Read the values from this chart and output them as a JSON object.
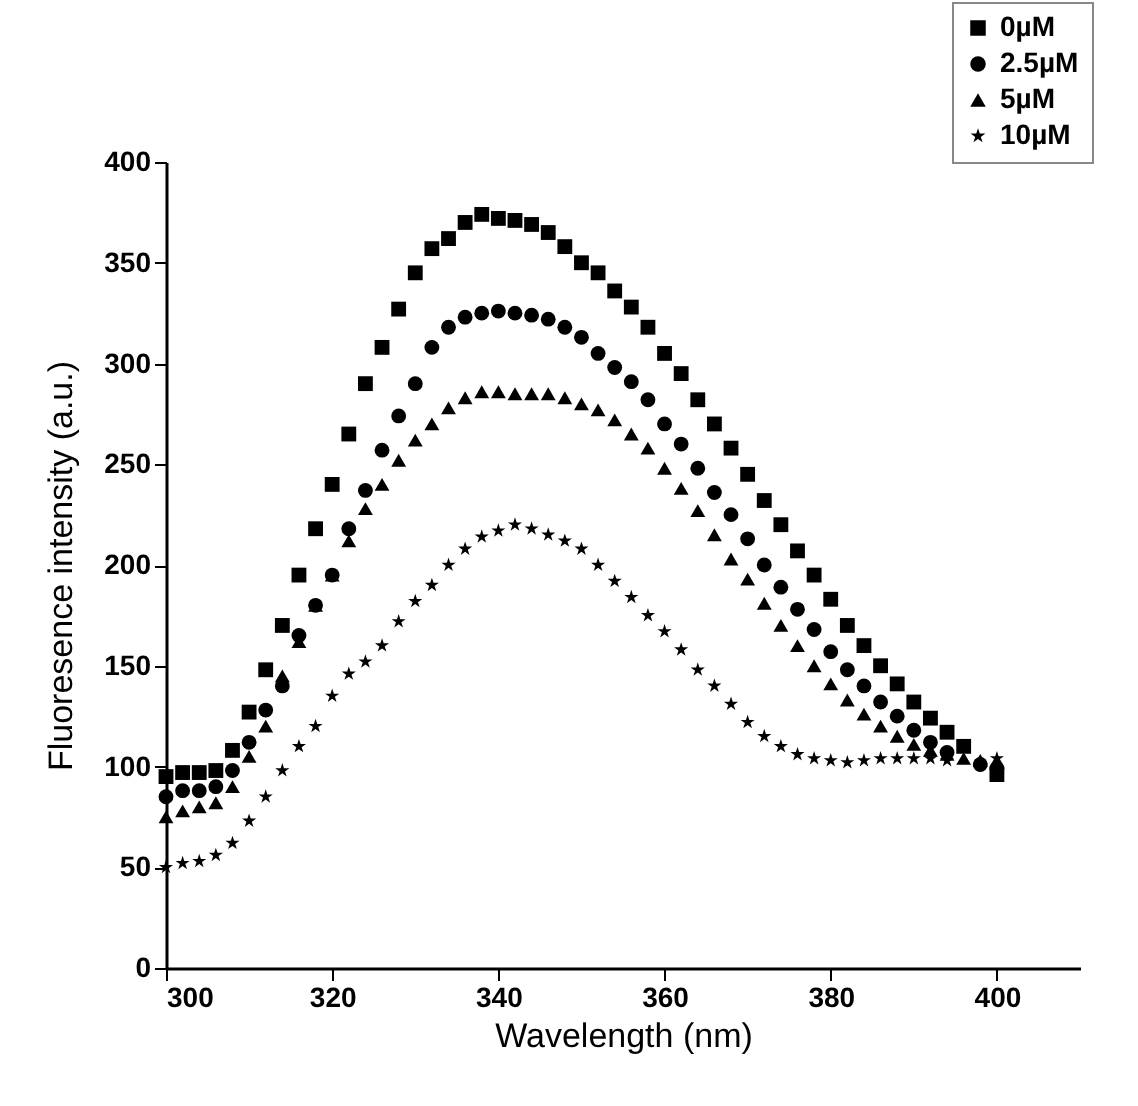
{
  "chart_data": {
    "type": "scatter",
    "xlabel": "Wavelength (nm)",
    "ylabel": "Fluoresence intensity (a.u.)",
    "x": [
      300,
      302,
      304,
      306,
      308,
      310,
      312,
      314,
      316,
      318,
      320,
      322,
      324,
      326,
      328,
      330,
      332,
      334,
      336,
      338,
      340,
      342,
      344,
      346,
      348,
      350,
      352,
      354,
      356,
      358,
      360,
      362,
      364,
      366,
      368,
      370,
      372,
      374,
      376,
      378,
      380,
      382,
      384,
      386,
      388,
      390,
      392,
      394,
      396,
      398,
      400
    ],
    "xlim": [
      300,
      410
    ],
    "xticks": [
      300,
      320,
      340,
      360,
      380,
      400
    ],
    "ylim": [
      0,
      400
    ],
    "yticks": [
      0,
      50,
      100,
      150,
      200,
      250,
      300,
      350,
      400
    ],
    "grid": false,
    "legend": "top right",
    "series": [
      {
        "name": "0µM",
        "color": "#000000",
        "marker": "square",
        "values": [
          95,
          97,
          97,
          98,
          108,
          127,
          148,
          170,
          195,
          218,
          240,
          265,
          290,
          308,
          327,
          345,
          357,
          362,
          370,
          374,
          372,
          371,
          369,
          365,
          358,
          350,
          345,
          336,
          328,
          318,
          305,
          295,
          282,
          270,
          258,
          245,
          232,
          220,
          207,
          195,
          183,
          170,
          160,
          150,
          141,
          132,
          124,
          117,
          110,
          null,
          96
        ]
      },
      {
        "name": "2.5µM",
        "color": "#000000",
        "marker": "circle",
        "values": [
          85,
          88,
          88,
          90,
          98,
          112,
          128,
          140,
          165,
          180,
          195,
          218,
          237,
          257,
          274,
          290,
          308,
          318,
          323,
          325,
          326,
          325,
          324,
          322,
          318,
          313,
          305,
          298,
          291,
          282,
          270,
          260,
          248,
          236,
          225,
          213,
          200,
          189,
          178,
          168,
          157,
          148,
          140,
          132,
          125,
          118,
          112,
          107,
          null,
          101,
          99
        ]
      },
      {
        "name": "5µM",
        "color": "#000000",
        "marker": "triangle",
        "values": [
          75,
          78,
          80,
          82,
          90,
          105,
          120,
          145,
          162,
          180,
          195,
          212,
          228,
          240,
          252,
          262,
          270,
          278,
          283,
          286,
          286,
          285,
          285,
          285,
          283,
          280,
          277,
          272,
          265,
          258,
          248,
          238,
          227,
          215,
          203,
          193,
          181,
          170,
          160,
          150,
          141,
          133,
          126,
          120,
          115,
          111,
          108,
          106,
          104,
          103,
          103
        ]
      },
      {
        "name": "10µM",
        "color": "#000000",
        "marker": "star",
        "values": [
          50,
          52,
          53,
          56,
          62,
          73,
          85,
          98,
          110,
          120,
          135,
          146,
          152,
          160,
          172,
          182,
          190,
          200,
          208,
          214,
          217,
          220,
          218,
          215,
          212,
          208,
          200,
          192,
          184,
          175,
          167,
          158,
          148,
          140,
          131,
          122,
          115,
          110,
          106,
          104,
          103,
          102,
          103,
          104,
          104,
          104,
          104,
          103,
          null,
          null,
          104
        ]
      }
    ]
  }
}
